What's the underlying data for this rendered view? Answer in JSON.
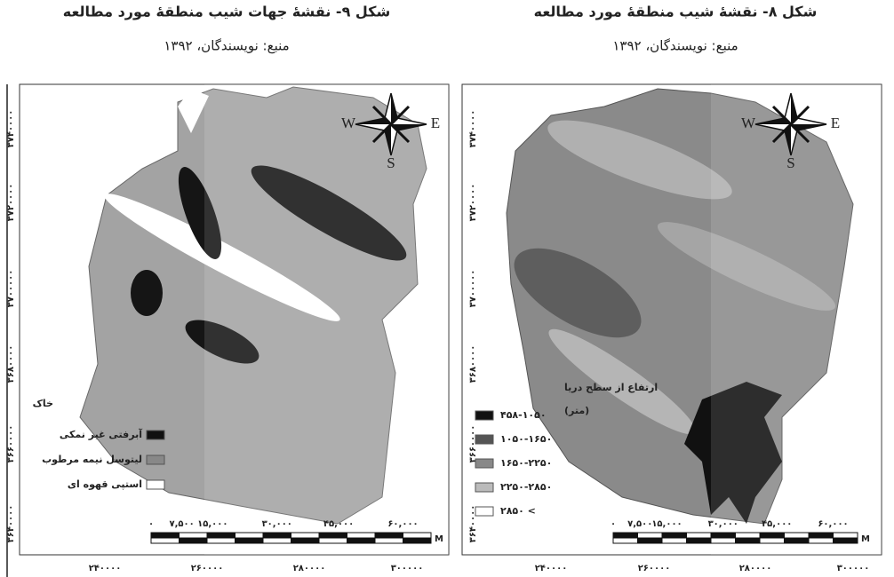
{
  "figures": [
    {
      "title": "شکل ۹- نقشهٔ جهات شیب منطقهٔ مورد مطالعه",
      "source": "منبع: نویسندگان، ۱۳۹۲",
      "compass": {
        "w": "W",
        "e": "E",
        "s": "S"
      },
      "legend": {
        "title_lines": [
          "خاک"
        ],
        "items": [
          "آبرفتی غیر نمکی",
          "لیتوسل نیمه مرطوب",
          "استپی قهوه ای"
        ]
      },
      "y_labels": [
        "۳۷۴۰۰۰۰",
        "۳۷۲۰۰۰۰",
        "۳۷۰۰۰۰۰",
        "۳۶۸۰۰۰۰",
        "۳۶۶۰۰۰۰",
        "۳۶۴۰۰۰۰"
      ],
      "x_labels": [
        "۲۴۰۰۰۰",
        "۲۶۰۰۰۰",
        "۲۸۰۰۰۰",
        "۳۰۰۰۰۰"
      ],
      "scale": {
        "labels": [
          "۰",
          "۷,۵۰۰",
          "۱۵,۰۰۰",
          "۳۰,۰۰۰",
          "۴۵,۰۰۰",
          "۶۰,۰۰۰"
        ],
        "unit": "M"
      }
    },
    {
      "title": "شکل ۸- نقشهٔ شیب منطقهٔ مورد مطالعه",
      "source": "منبع: نویسندگان، ۱۳۹۲",
      "compass": {
        "w": "W",
        "e": "E",
        "s": "S"
      },
      "legend": {
        "title_lines": [
          "ارتفاع از سطح دریا",
          "(متر)"
        ],
        "items": [
          "۴۵۸-۱۰۵۰",
          "۱۰۵۰-۱۶۵۰",
          "۱۶۵۰-۲۲۵۰",
          "۲۲۵۰-۲۸۵۰",
          "۲۸۵۰ <"
        ]
      },
      "y_labels": [
        "۳۷۴۰۰۰۰",
        "۳۷۲۰۰۰۰",
        "۳۷۰۰۰۰۰",
        "۳۶۸۰۰۰۰",
        "۳۶۶۰۰۰۰",
        "۳۶۴۰۰۰۰"
      ],
      "x_labels": [
        "۲۴۰۰۰۰",
        "۲۶۰۰۰۰",
        "۲۸۰۰۰۰",
        "۳۰۰۰۰۰"
      ],
      "scale": {
        "labels": [
          "۰",
          "۷,۵۰۰",
          "۱۵,۰۰۰",
          "۳۰,۰۰۰",
          "۴۵,۰۰۰",
          "۶۰,۰۰۰"
        ],
        "unit": "M"
      }
    }
  ]
}
